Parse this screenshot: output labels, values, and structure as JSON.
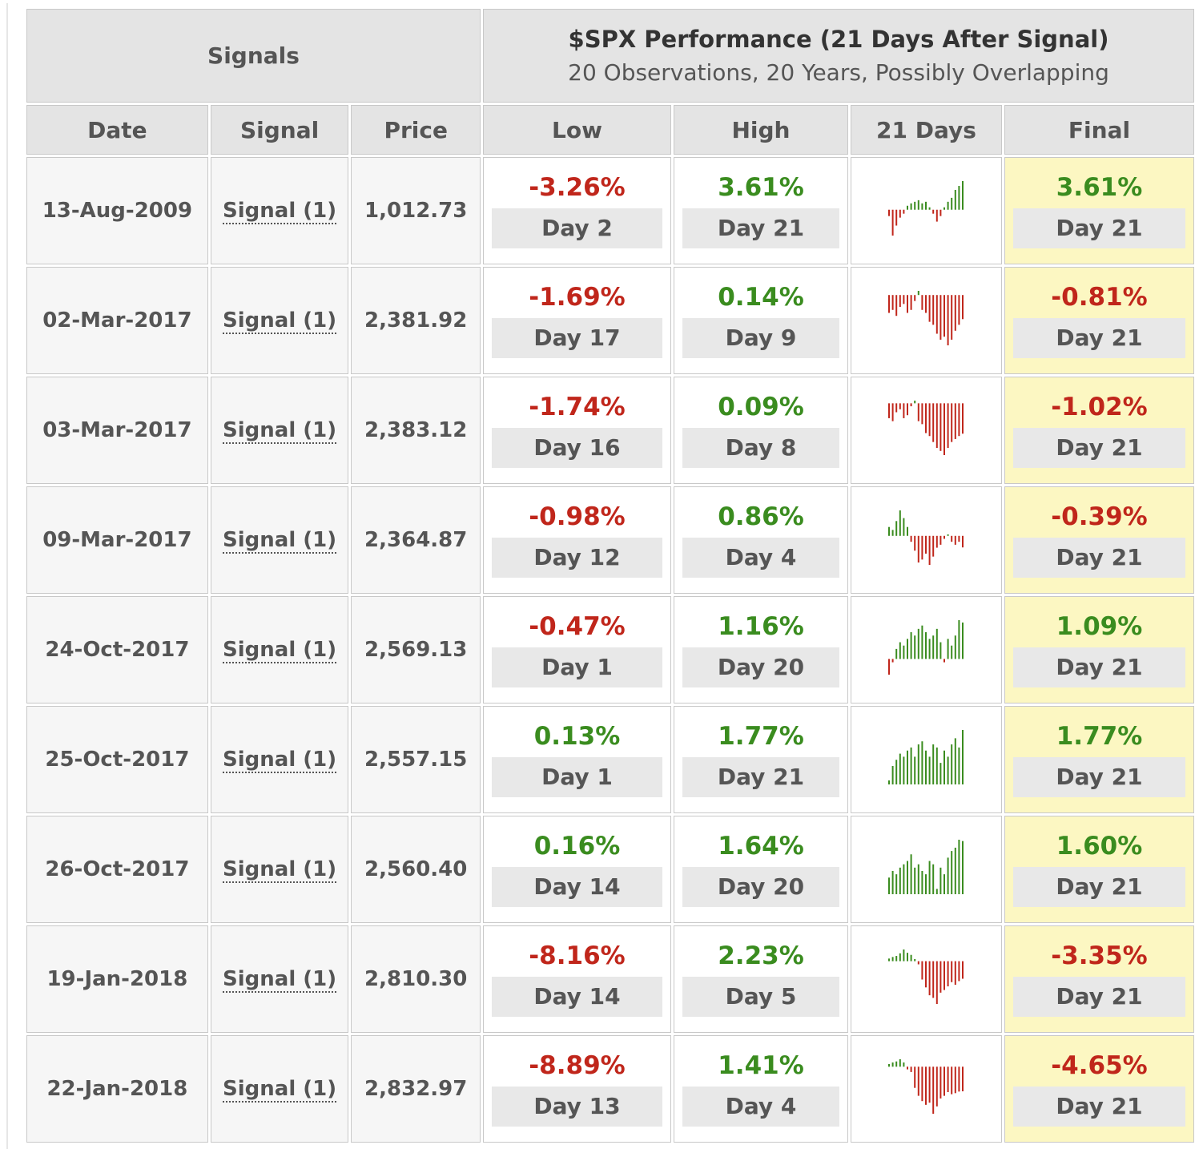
{
  "header": {
    "signals_title": "Signals",
    "perf_title": "$SPX Performance (21 Days After Signal)",
    "perf_subtitle": "20 Observations, 20 Years, Possibly Overlapping"
  },
  "columns": [
    "Date",
    "Signal",
    "Price",
    "Low",
    "High",
    "21 Days",
    "Final"
  ],
  "rows": [
    {
      "date": "13-Aug-2009",
      "signal": "Signal (1)",
      "price": "1,012.73",
      "low": {
        "value": "-3.26%",
        "day": "Day 2"
      },
      "high": {
        "value": "3.61%",
        "day": "Day 21"
      },
      "final": {
        "value": "3.61%",
        "day": "Day 21"
      },
      "days": [
        -0.8,
        -3.26,
        -2,
        -1,
        -0.5,
        0.5,
        0.8,
        1,
        1.2,
        0.8,
        1,
        0.3,
        -0.5,
        -1.5,
        -0.8,
        0.3,
        1,
        1.5,
        2.5,
        3,
        3.61
      ]
    },
    {
      "date": "02-Mar-2017",
      "signal": "Signal (1)",
      "price": "2,381.92",
      "low": {
        "value": "-1.69%",
        "day": "Day 17"
      },
      "high": {
        "value": "0.14%",
        "day": "Day 9"
      },
      "final": {
        "value": "-0.81%",
        "day": "Day 21"
      },
      "days": [
        -0.6,
        -0.5,
        -0.7,
        -0.4,
        -0.3,
        -0.6,
        -0.5,
        -0.2,
        0.14,
        -0.5,
        -0.6,
        -0.9,
        -1,
        -1.3,
        -1.5,
        -1.4,
        -1.69,
        -1.5,
        -1.2,
        -1,
        -0.81
      ]
    },
    {
      "date": "03-Mar-2017",
      "signal": "Signal (1)",
      "price": "2,383.12",
      "low": {
        "value": "-1.74%",
        "day": "Day 16"
      },
      "high": {
        "value": "0.09%",
        "day": "Day 8"
      },
      "final": {
        "value": "-1.02%",
        "day": "Day 21"
      },
      "days": [
        -0.5,
        -0.6,
        -0.3,
        -0.2,
        -0.5,
        -0.4,
        -0.1,
        0.09,
        -0.6,
        -0.7,
        -1,
        -1.1,
        -1.3,
        -1.5,
        -1.6,
        -1.74,
        -1.5,
        -1.3,
        -1.2,
        -1.1,
        -1.02
      ]
    },
    {
      "date": "09-Mar-2017",
      "signal": "Signal (1)",
      "price": "2,364.87",
      "low": {
        "value": "-0.98%",
        "day": "Day 12"
      },
      "high": {
        "value": "0.86%",
        "day": "Day 4"
      },
      "final": {
        "value": "-0.39%",
        "day": "Day 21"
      },
      "days": [
        0.3,
        0.2,
        0.5,
        0.86,
        0.6,
        0.3,
        -0.2,
        -0.5,
        -0.9,
        -0.8,
        -0.6,
        -0.98,
        -0.7,
        -0.4,
        -0.3,
        -0.1,
        0.05,
        -0.2,
        -0.3,
        -0.2,
        -0.39
      ]
    },
    {
      "date": "24-Oct-2017",
      "signal": "Signal (1)",
      "price": "2,569.13",
      "low": {
        "value": "-0.47%",
        "day": "Day 1"
      },
      "high": {
        "value": "1.16%",
        "day": "Day 20"
      },
      "final": {
        "value": "1.09%",
        "day": "Day 21"
      },
      "days": [
        -0.47,
        -0.1,
        0.3,
        0.5,
        0.4,
        0.6,
        0.8,
        0.7,
        0.9,
        1,
        0.8,
        0.6,
        0.7,
        0.9,
        0.5,
        -0.1,
        0.6,
        0.4,
        0.7,
        1.16,
        1.09
      ]
    },
    {
      "date": "25-Oct-2017",
      "signal": "Signal (1)",
      "price": "2,557.15",
      "low": {
        "value": "0.13%",
        "day": "Day 1"
      },
      "high": {
        "value": "1.77%",
        "day": "Day 21"
      },
      "final": {
        "value": "1.77%",
        "day": "Day 21"
      },
      "days": [
        0.13,
        0.6,
        0.8,
        1,
        0.9,
        1.1,
        1.2,
        0.9,
        1.3,
        1.4,
        1.1,
        0.9,
        1.3,
        1.2,
        0.7,
        1.1,
        0.9,
        1.3,
        1.5,
        1.2,
        1.77
      ]
    },
    {
      "date": "26-Oct-2017",
      "signal": "Signal (1)",
      "price": "2,560.40",
      "low": {
        "value": "0.16%",
        "day": "Day 14"
      },
      "high": {
        "value": "1.64%",
        "day": "Day 20"
      },
      "final": {
        "value": "1.60%",
        "day": "Day 21"
      },
      "days": [
        0.5,
        0.7,
        0.6,
        0.8,
        0.9,
        1,
        1.2,
        0.8,
        0.9,
        0.7,
        0.6,
        1,
        0.9,
        0.16,
        0.8,
        0.6,
        1.1,
        1.3,
        1.4,
        1.64,
        1.6
      ]
    },
    {
      "date": "19-Jan-2018",
      "signal": "Signal (1)",
      "price": "2,810.30",
      "low": {
        "value": "-8.16%",
        "day": "Day 14"
      },
      "high": {
        "value": "2.23%",
        "day": "Day 5"
      },
      "final": {
        "value": "-3.35%",
        "day": "Day 21"
      },
      "days": [
        0.5,
        0.8,
        1,
        1.5,
        2.23,
        1.6,
        1.2,
        0.4,
        -0.6,
        -3.5,
        -5,
        -6.5,
        -7,
        -8.16,
        -6,
        -5.5,
        -4.8,
        -4,
        -4.5,
        -3.8,
        -3.35
      ]
    },
    {
      "date": "22-Jan-2018",
      "signal": "Signal (1)",
      "price": "2,832.97",
      "low": {
        "value": "-8.89%",
        "day": "Day 13"
      },
      "high": {
        "value": "1.41%",
        "day": "Day 4"
      },
      "final": {
        "value": "-4.65%",
        "day": "Day 21"
      },
      "days": [
        0.5,
        0.8,
        1,
        1.41,
        0.8,
        -0.5,
        -1,
        -4,
        -5.5,
        -6.5,
        -7.2,
        -6.8,
        -8.89,
        -7.5,
        -6,
        -5.5,
        -4.8,
        -5.2,
        -5,
        -4.7,
        -4.65
      ]
    }
  ]
}
